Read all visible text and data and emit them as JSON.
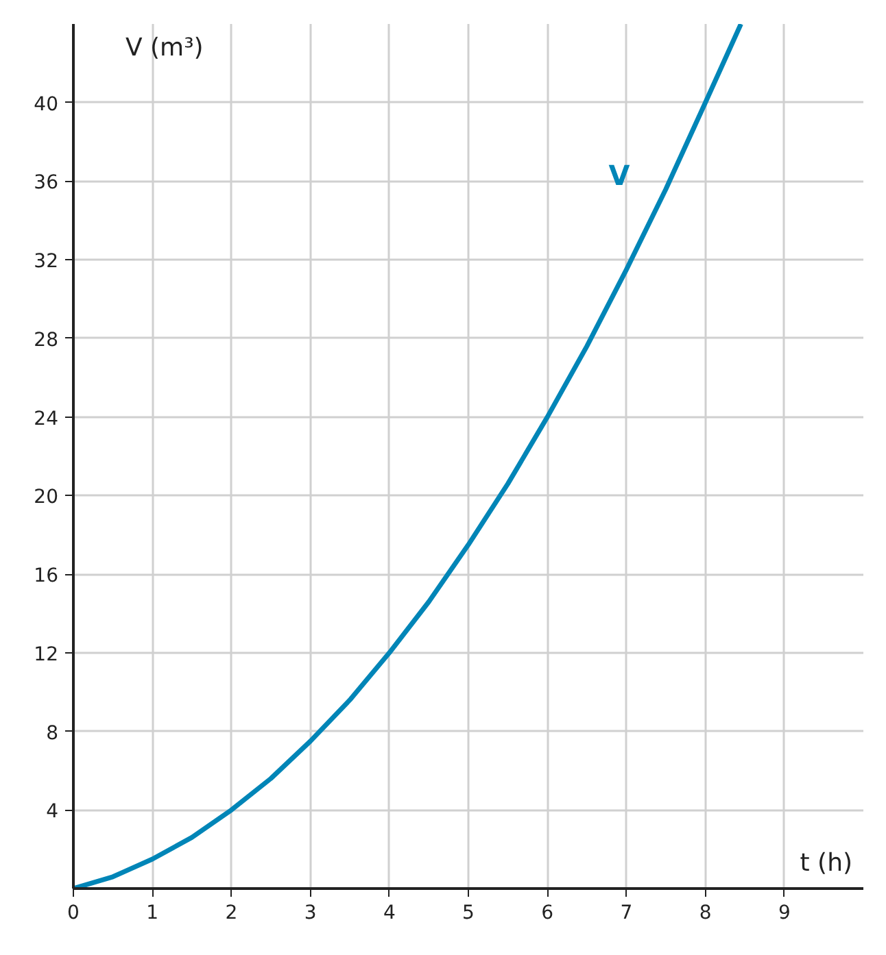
{
  "chart_data": {
    "type": "line",
    "xlabel": "t (h)",
    "ylabel": "V (m³)",
    "x": [
      0,
      0.5,
      1,
      1.5,
      2,
      2.5,
      3,
      3.5,
      4,
      4.5,
      5,
      5.5,
      6,
      6.5,
      7,
      7.5,
      8,
      8.45
    ],
    "series": [
      {
        "name": "V",
        "color": "#0085b7",
        "values": [
          0,
          0.6,
          1.5,
          2.6,
          4,
          5.6,
          7.5,
          9.6,
          12,
          14.6,
          17.5,
          20.6,
          24,
          27.6,
          31.5,
          35.6,
          40,
          44
        ]
      }
    ],
    "xlim": [
      0,
      10
    ],
    "ylim": [
      0,
      44
    ],
    "xticks": [
      0,
      1,
      2,
      3,
      4,
      5,
      6,
      7,
      8,
      9
    ],
    "yticks": [
      4,
      8,
      12,
      16,
      20,
      24,
      28,
      32,
      36,
      40
    ],
    "grid": true
  }
}
